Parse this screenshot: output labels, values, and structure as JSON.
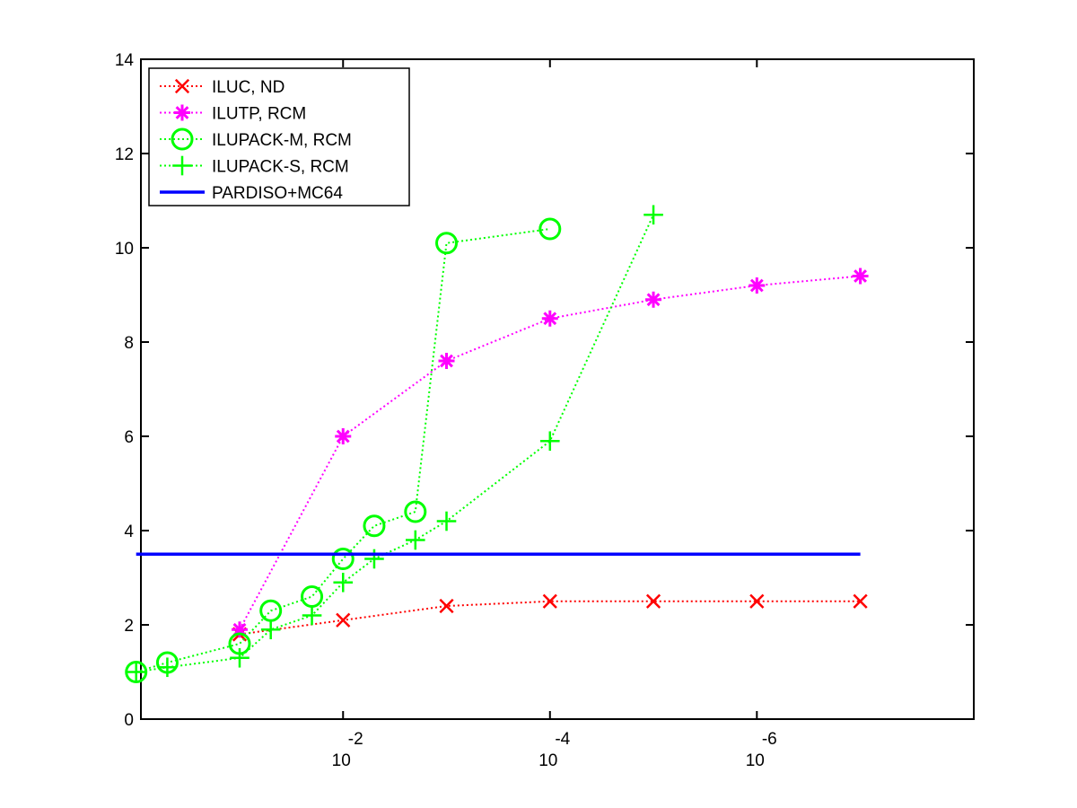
{
  "chart_data": {
    "type": "line",
    "title": "",
    "xlabel": "",
    "ylabel": "",
    "x_scale": "log",
    "x_reversed": true,
    "xlim": [
      0.9,
      8e-09
    ],
    "ylim": [
      0,
      14
    ],
    "x_ticks": [
      {
        "value": 0.01,
        "base": "10",
        "exp": "-2"
      },
      {
        "value": 0.0001,
        "base": "10",
        "exp": "-4"
      },
      {
        "value": 1e-06,
        "base": "10",
        "exp": "-6"
      }
    ],
    "y_ticks": [
      "0",
      "2",
      "4",
      "6",
      "8",
      "10",
      "12",
      "14"
    ],
    "grid": false,
    "legend_position": "top-left",
    "series": [
      {
        "name": "ILUC,  ND",
        "color": "#ff0000",
        "line_style": "dotted",
        "marker": "x",
        "x": [
          0.1,
          0.01,
          0.001,
          0.0001,
          1e-05,
          1e-06,
          1e-07
        ],
        "y": [
          1.8,
          2.1,
          2.4,
          2.5,
          2.5,
          2.5,
          2.5
        ]
      },
      {
        "name": "ILUTP, RCM",
        "color": "#ff00ff",
        "line_style": "dotted",
        "marker": "asterisk",
        "x": [
          0.1,
          0.01,
          0.001,
          0.0001,
          1e-05,
          1e-06,
          1e-07
        ],
        "y": [
          1.9,
          6.0,
          7.6,
          8.5,
          8.9,
          9.2,
          9.4
        ]
      },
      {
        "name": "ILUPACK-M, RCM",
        "color": "#00ff00",
        "line_style": "dotted",
        "marker": "circle",
        "x": [
          1,
          0.5,
          0.1,
          0.05,
          0.02,
          0.01,
          0.005,
          0.002,
          0.001,
          0.0001
        ],
        "y": [
          1.0,
          1.2,
          1.6,
          2.3,
          2.6,
          3.4,
          4.1,
          4.4,
          10.1,
          10.4
        ]
      },
      {
        "name": "ILUPACK-S, RCM",
        "color": "#00ff00",
        "line_style": "dotted",
        "marker": "plus",
        "x": [
          1,
          0.5,
          0.1,
          0.05,
          0.02,
          0.01,
          0.005,
          0.002,
          0.001,
          0.0001,
          1e-05
        ],
        "y": [
          1.0,
          1.1,
          1.3,
          1.9,
          2.2,
          2.9,
          3.4,
          3.8,
          4.2,
          5.9,
          10.7
        ]
      },
      {
        "name": "PARDISO+MC64",
        "color": "#0000ff",
        "line_style": "solid",
        "marker": "none",
        "x": [
          1,
          1e-07
        ],
        "y": [
          3.5,
          3.5
        ]
      }
    ]
  }
}
